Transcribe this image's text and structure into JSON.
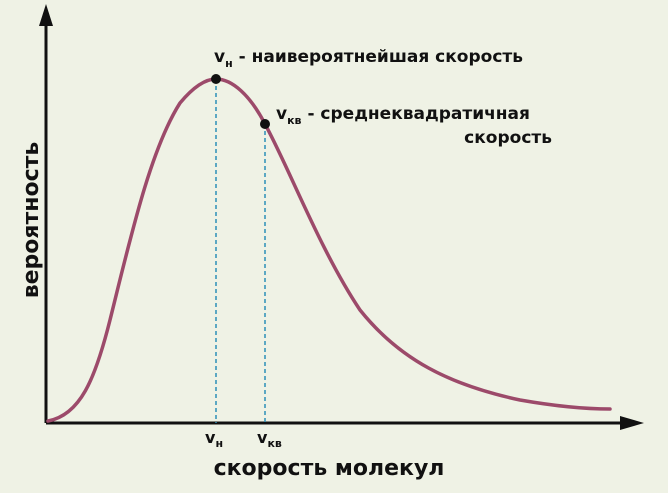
{
  "colors": {
    "background": "#eff2e5",
    "curve": "#9c4a6a",
    "guides": "#2c8fb8",
    "axes": "#111111"
  },
  "labels": {
    "y_axis": "вероятность",
    "x_axis": "скорость молекул",
    "peak_main": "v",
    "peak_sub": "н",
    "peak_text": " - наивероятнейшая скорость",
    "rms_main": "v",
    "rms_sub": "кв",
    "rms_text_line1": " - среднеквадратичная",
    "rms_text_line2": "скорость",
    "tick_peak_main": "v",
    "tick_peak_sub": "н",
    "tick_rms_main": "v",
    "tick_rms_sub": "кв"
  }
}
